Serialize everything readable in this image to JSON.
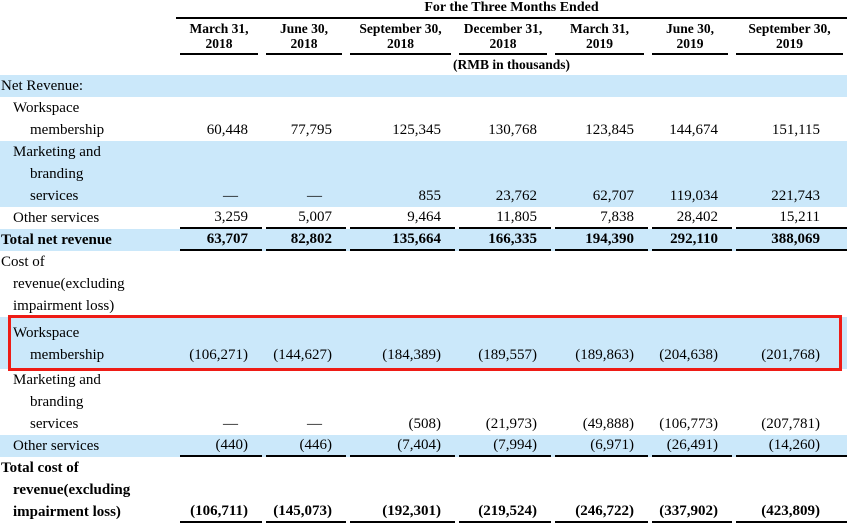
{
  "colors": {
    "row_highlight_blue": "#cbe8fa",
    "annotation_red": "#ee1c16",
    "rule_black": "#000000"
  },
  "table": {
    "title": "For the Three Months Ended",
    "unit_note": "(RMB in thousands)",
    "columns": [
      {
        "line1": "March 31,",
        "line2": "2018"
      },
      {
        "line1": "June 30,",
        "line2": "2018"
      },
      {
        "line1": "September 30,",
        "line2": "2018"
      },
      {
        "line1": "December 31,",
        "line2": "2018"
      },
      {
        "line1": "March 31,",
        "line2": "2019"
      },
      {
        "line1": "June 30,",
        "line2": "2019"
      },
      {
        "line1": "September 30,",
        "line2": "2019"
      }
    ],
    "rows": [
      {
        "key": "net-revenue-heading",
        "label_lines": [
          {
            "text": "Net Revenue:",
            "indent": 0
          }
        ],
        "values": [
          "",
          "",
          "",
          "",
          "",
          "",
          ""
        ],
        "shade": "blue",
        "bold": false,
        "rule_below": false,
        "boxed": false
      },
      {
        "key": "workspace-membership-revenue",
        "label_lines": [
          {
            "text": "Workspace",
            "indent": 1
          },
          {
            "text": "membership",
            "indent": 2
          }
        ],
        "values": [
          "60,448",
          "77,795",
          "125,345",
          "130,768",
          "123,845",
          "144,674",
          "151,115"
        ],
        "shade": "white",
        "bold": false,
        "rule_below": false,
        "boxed": false
      },
      {
        "key": "marketing-branding-services-revenue",
        "label_lines": [
          {
            "text": "Marketing and",
            "indent": 1
          },
          {
            "text": "branding",
            "indent": 2
          },
          {
            "text": "services",
            "indent": 2
          }
        ],
        "values": [
          "—",
          "—",
          "855",
          "23,762",
          "62,707",
          "119,034",
          "221,743"
        ],
        "shade": "blue",
        "bold": false,
        "rule_below": false,
        "boxed": false
      },
      {
        "key": "other-services-revenue",
        "label_lines": [
          {
            "text": "Other services",
            "indent": 1
          }
        ],
        "values": [
          "3,259",
          "5,007",
          "9,464",
          "11,805",
          "7,838",
          "28,402",
          "15,211"
        ],
        "shade": "white",
        "bold": false,
        "rule_below": true,
        "boxed": false
      },
      {
        "key": "total-net-revenue",
        "label_lines": [
          {
            "text": "Total net revenue",
            "indent": 0
          }
        ],
        "values": [
          "63,707",
          "82,802",
          "135,664",
          "166,335",
          "194,390",
          "292,110",
          "388,069"
        ],
        "shade": "blue",
        "bold": true,
        "rule_below": true,
        "boxed": false
      },
      {
        "key": "cost-of-revenue-heading",
        "label_lines": [
          {
            "text": "Cost of",
            "indent": 0
          },
          {
            "text": "revenue(excluding",
            "indent": 1
          },
          {
            "text": "impairment loss)",
            "indent": 1
          }
        ],
        "values": [
          "",
          "",
          "",
          "",
          "",
          "",
          ""
        ],
        "shade": "white",
        "bold": false,
        "rule_below": false,
        "boxed": false
      },
      {
        "key": "workspace-membership-cost",
        "label_lines": [
          {
            "text": "Workspace",
            "indent": 1
          },
          {
            "text": "membership",
            "indent": 2
          }
        ],
        "values": [
          "(106,271)",
          "(144,627)",
          "(184,389)",
          "(189,557)",
          "(189,863)",
          "(204,638)",
          "(201,768)"
        ],
        "shade": "blue",
        "bold": false,
        "rule_below": false,
        "boxed": true
      },
      {
        "key": "marketing-branding-services-cost",
        "label_lines": [
          {
            "text": "Marketing and",
            "indent": 1
          },
          {
            "text": "branding",
            "indent": 2
          },
          {
            "text": "services",
            "indent": 2
          }
        ],
        "values": [
          "—",
          "—",
          "(508)",
          "(21,973)",
          "(49,888)",
          "(106,773)",
          "(207,781)"
        ],
        "shade": "white",
        "bold": false,
        "rule_below": false,
        "boxed": false
      },
      {
        "key": "other-services-cost",
        "label_lines": [
          {
            "text": "Other services",
            "indent": 1
          }
        ],
        "values": [
          "(440)",
          "(446)",
          "(7,404)",
          "(7,994)",
          "(6,971)",
          "(26,491)",
          "(14,260)"
        ],
        "shade": "blue",
        "bold": false,
        "rule_below": true,
        "boxed": false
      },
      {
        "key": "total-cost-of-revenue",
        "label_lines": [
          {
            "text": "Total cost of",
            "indent": 0
          },
          {
            "text": "revenue(excluding",
            "indent": 1
          },
          {
            "text": "impairment loss)",
            "indent": 1
          }
        ],
        "values": [
          "(106,711)",
          "(145,073)",
          "(192,301)",
          "(219,524)",
          "(246,722)",
          "(337,902)",
          "(423,809)"
        ],
        "shade": "white",
        "bold": true,
        "rule_below": true,
        "boxed": false
      }
    ]
  },
  "annotation": {
    "type": "red-box",
    "target_row": "workspace-membership-cost"
  }
}
